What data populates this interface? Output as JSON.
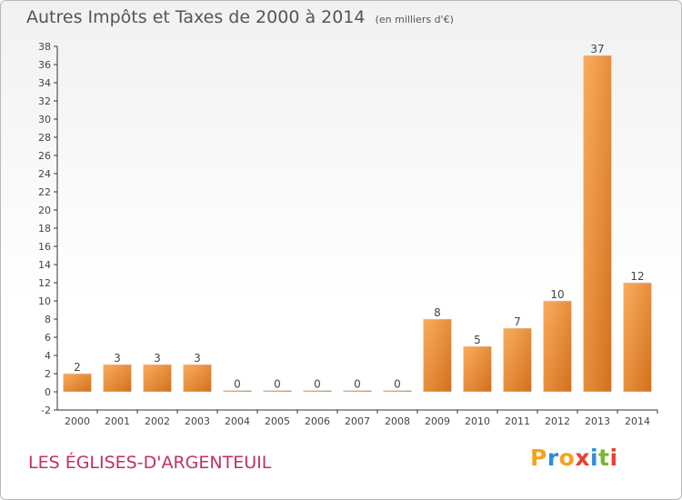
{
  "header": {
    "title": "Autres Impôts et Taxes de 2000 à 2014",
    "unit": "(en milliers d'€)"
  },
  "footer": {
    "commune": "LES ÉGLISES-D'ARGENTEUIL",
    "logo_letters": [
      "P",
      "r",
      "o",
      "x",
      "i",
      "t",
      "i"
    ],
    "logo_colors": [
      "#f6a21e",
      "#2c8fd8",
      "#f6a21e",
      "#e8402f",
      "#2c8fd8",
      "#79b72e",
      "#e8402f"
    ]
  },
  "colors": {
    "bar_light": "#f7a95a",
    "bar_dark": "#d46f18",
    "commune_text": "#c2305a"
  },
  "chart_data": {
    "type": "bar",
    "title": "Autres Impôts et Taxes de 2000 à 2014",
    "subtitle": "(en milliers d'€)",
    "categories": [
      "2000",
      "2001",
      "2002",
      "2003",
      "2004",
      "2005",
      "2006",
      "2007",
      "2008",
      "2009",
      "2010",
      "2011",
      "2012",
      "2013",
      "2014"
    ],
    "values": [
      2,
      3,
      3,
      3,
      0,
      0,
      0,
      0,
      0,
      8,
      5,
      7,
      10,
      37,
      12
    ],
    "ylim": [
      -2,
      38
    ],
    "yticks": [
      -2,
      0,
      2,
      4,
      6,
      8,
      10,
      12,
      14,
      16,
      18,
      20,
      22,
      24,
      26,
      28,
      30,
      32,
      34,
      36,
      38
    ],
    "grid": false,
    "legend": "none"
  }
}
